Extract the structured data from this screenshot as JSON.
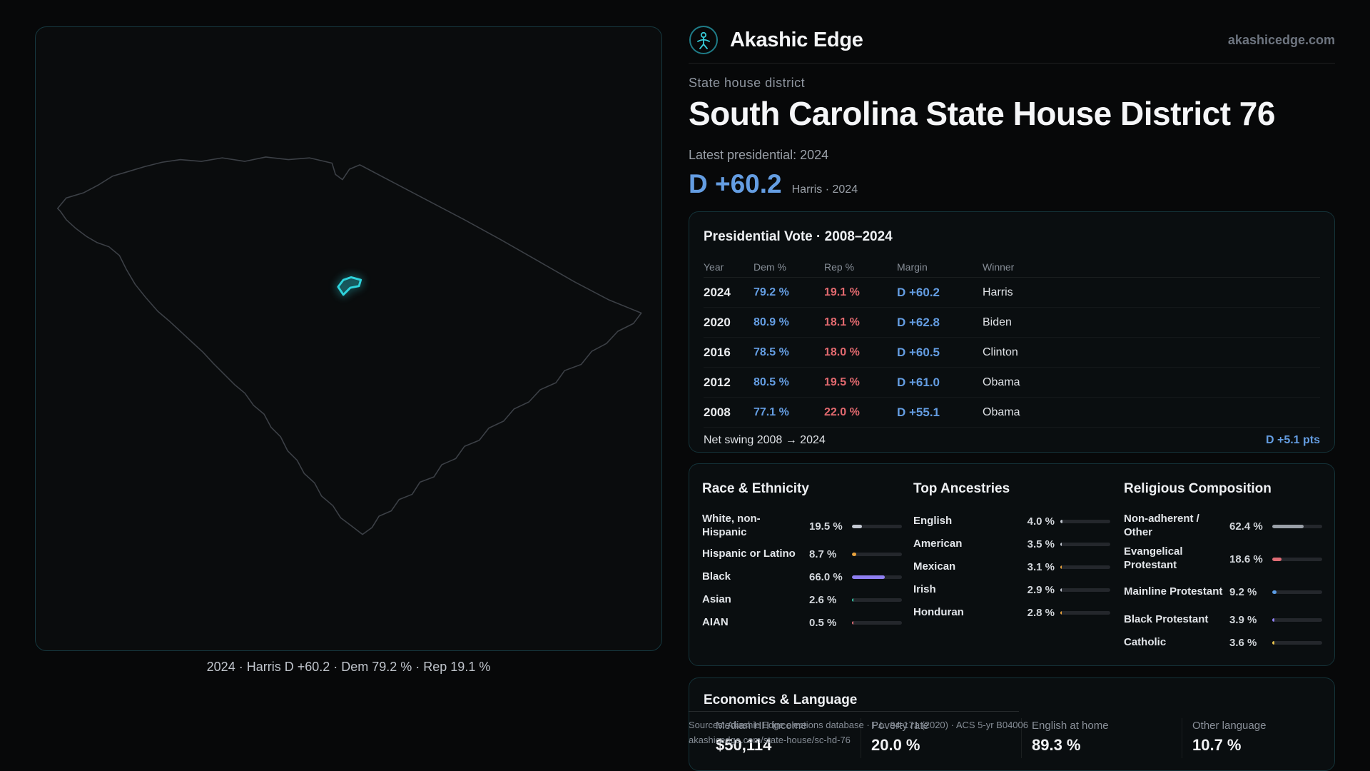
{
  "colors": {
    "dem": "#649de2",
    "rep": "#e2696f",
    "accent": "#2ed3dc"
  },
  "brand": {
    "name": "Akashic Edge",
    "site": "akashicedge.com"
  },
  "map": {
    "caption": "2024 · Harris D +60.2 · Dem 79.2 % · Rep 19.1 %"
  },
  "hero": {
    "kicker": "State house district",
    "title": "South Carolina State House District 76",
    "latest": "Latest presidential: 2024",
    "margin": "D +60.2",
    "margin_note": "Harris · 2024"
  },
  "presidential": {
    "title": "Presidential Vote · 2008–2024",
    "columns": {
      "year": "Year",
      "dem": "Dem %",
      "rep": "Rep %",
      "margin": "Margin",
      "winner": "Winner"
    },
    "rows": [
      {
        "year": "2024",
        "dem": "79.2 %",
        "rep": "19.1 %",
        "margin": "D +60.2",
        "winner": "Harris"
      },
      {
        "year": "2020",
        "dem": "80.9 %",
        "rep": "18.1 %",
        "margin": "D +62.8",
        "winner": "Biden"
      },
      {
        "year": "2016",
        "dem": "78.5 %",
        "rep": "18.0 %",
        "margin": "D +60.5",
        "winner": "Clinton"
      },
      {
        "year": "2012",
        "dem": "80.5 %",
        "rep": "19.5 %",
        "margin": "D +61.0",
        "winner": "Obama"
      },
      {
        "year": "2008",
        "dem": "77.1 %",
        "rep": "22.0 %",
        "margin": "D +55.1",
        "winner": "Obama"
      }
    ],
    "net_swing_label": "Net swing 2008 → 2024",
    "net_swing_value": "D +5.1 pts"
  },
  "race": {
    "title": "Race & Ethnicity",
    "rows": [
      {
        "label": "White, non-Hispanic",
        "value": "19.5 %",
        "pct": 19.5,
        "color": "#c3c8d1"
      },
      {
        "label": "Hispanic or Latino",
        "value": "8.7 %",
        "pct": 8.7,
        "color": "#e8a23c"
      },
      {
        "label": "Black",
        "value": "66.0 %",
        "pct": 66.0,
        "color": "#8f7ff2"
      },
      {
        "label": "Asian",
        "value": "2.6 %",
        "pct": 2.6,
        "color": "#35c9a8"
      },
      {
        "label": "AIAN",
        "value": "0.5 %",
        "pct": 0.5,
        "color": "#e06c75"
      }
    ]
  },
  "ancestries": {
    "title": "Top Ancestries",
    "rows": [
      {
        "label": "English",
        "value": "4.0 %",
        "pct": 4.0,
        "color": "#c3c8d1"
      },
      {
        "label": "American",
        "value": "3.5 %",
        "pct": 3.5,
        "color": "#c3c8d1"
      },
      {
        "label": "Mexican",
        "value": "3.1 %",
        "pct": 3.1,
        "color": "#e8a23c"
      },
      {
        "label": "Irish",
        "value": "2.9 %",
        "pct": 2.9,
        "color": "#c3c8d1"
      },
      {
        "label": "Honduran",
        "value": "2.8 %",
        "pct": 2.8,
        "color": "#e8a23c"
      }
    ]
  },
  "religion": {
    "title": "Religious Composition",
    "rows": [
      {
        "label": "Non-adherent / Other",
        "value": "62.4 %",
        "pct": 62.4,
        "color": "#9aa0a8"
      },
      {
        "label": "Evangelical Protestant",
        "value": "18.6 %",
        "pct": 18.6,
        "color": "#e06c75"
      },
      {
        "label": "Mainline Protestant",
        "value": "9.2 %",
        "pct": 9.2,
        "color": "#5b9ce5"
      },
      {
        "label": "Black Protestant",
        "value": "3.9 %",
        "pct": 3.9,
        "color": "#8f7ff2"
      },
      {
        "label": "Catholic",
        "value": "3.6 %",
        "pct": 3.6,
        "color": "#e5c04b"
      }
    ]
  },
  "economics": {
    "title": "Economics & Language",
    "stats": [
      {
        "label": "Median HH income",
        "value": "$50,114"
      },
      {
        "label": "Poverty rate",
        "value": "20.0 %"
      },
      {
        "label": "English at home",
        "value": "89.3 %"
      },
      {
        "label": "Other language",
        "value": "10.7 %"
      }
    ]
  },
  "footer": {
    "sources": "Sources: Akashic Edge elections database · P.L. 94-171 (2020) · ACS 5-yr B04006",
    "permalink": "akashicedge.com/state-house/sc-hd-76"
  }
}
